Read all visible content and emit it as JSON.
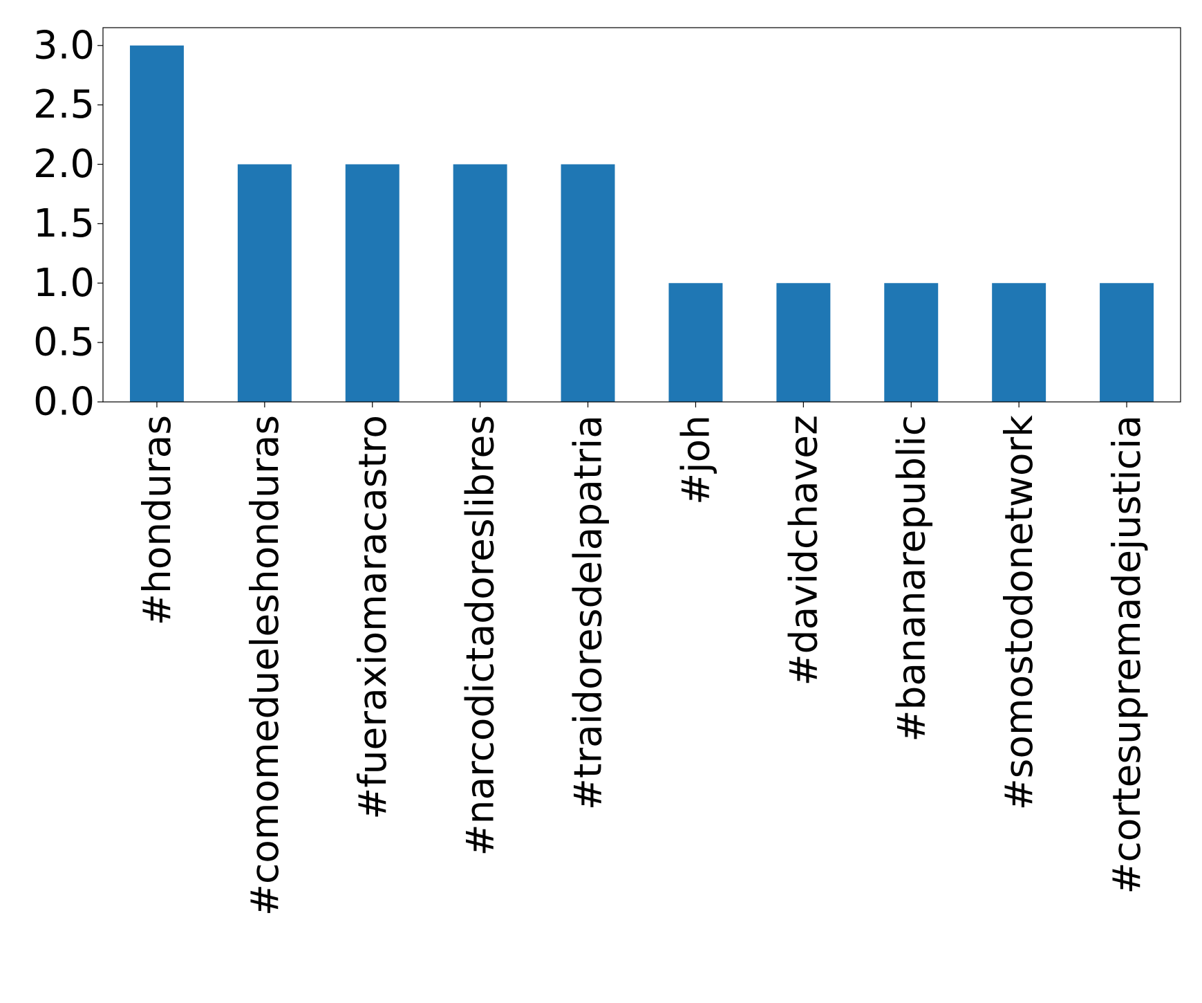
{
  "chart_data": {
    "type": "bar",
    "categories": [
      "#honduras",
      "#comomedueleshonduras",
      "#fueraxiomaracastro",
      "#narcodictadoreslibres",
      "#traidoresdelapatria",
      "#joh",
      "#davidchavez",
      "#bananarepublic",
      "#somostodonetwork",
      "#cortesupremadejusticia"
    ],
    "values": [
      3,
      2,
      2,
      2,
      2,
      1,
      1,
      1,
      1,
      1
    ],
    "color": "#1f77b4",
    "ylim": [
      0,
      3.15
    ],
    "yticks": [
      {
        "value": 0,
        "label": "0.0"
      },
      0.5,
      {
        "value": 1,
        "label": "1.0"
      },
      1.5,
      {
        "value": 2,
        "label": "2.0"
      },
      2.5,
      {
        "value": 3,
        "label": "3.0"
      }
    ],
    "grid": false
  }
}
